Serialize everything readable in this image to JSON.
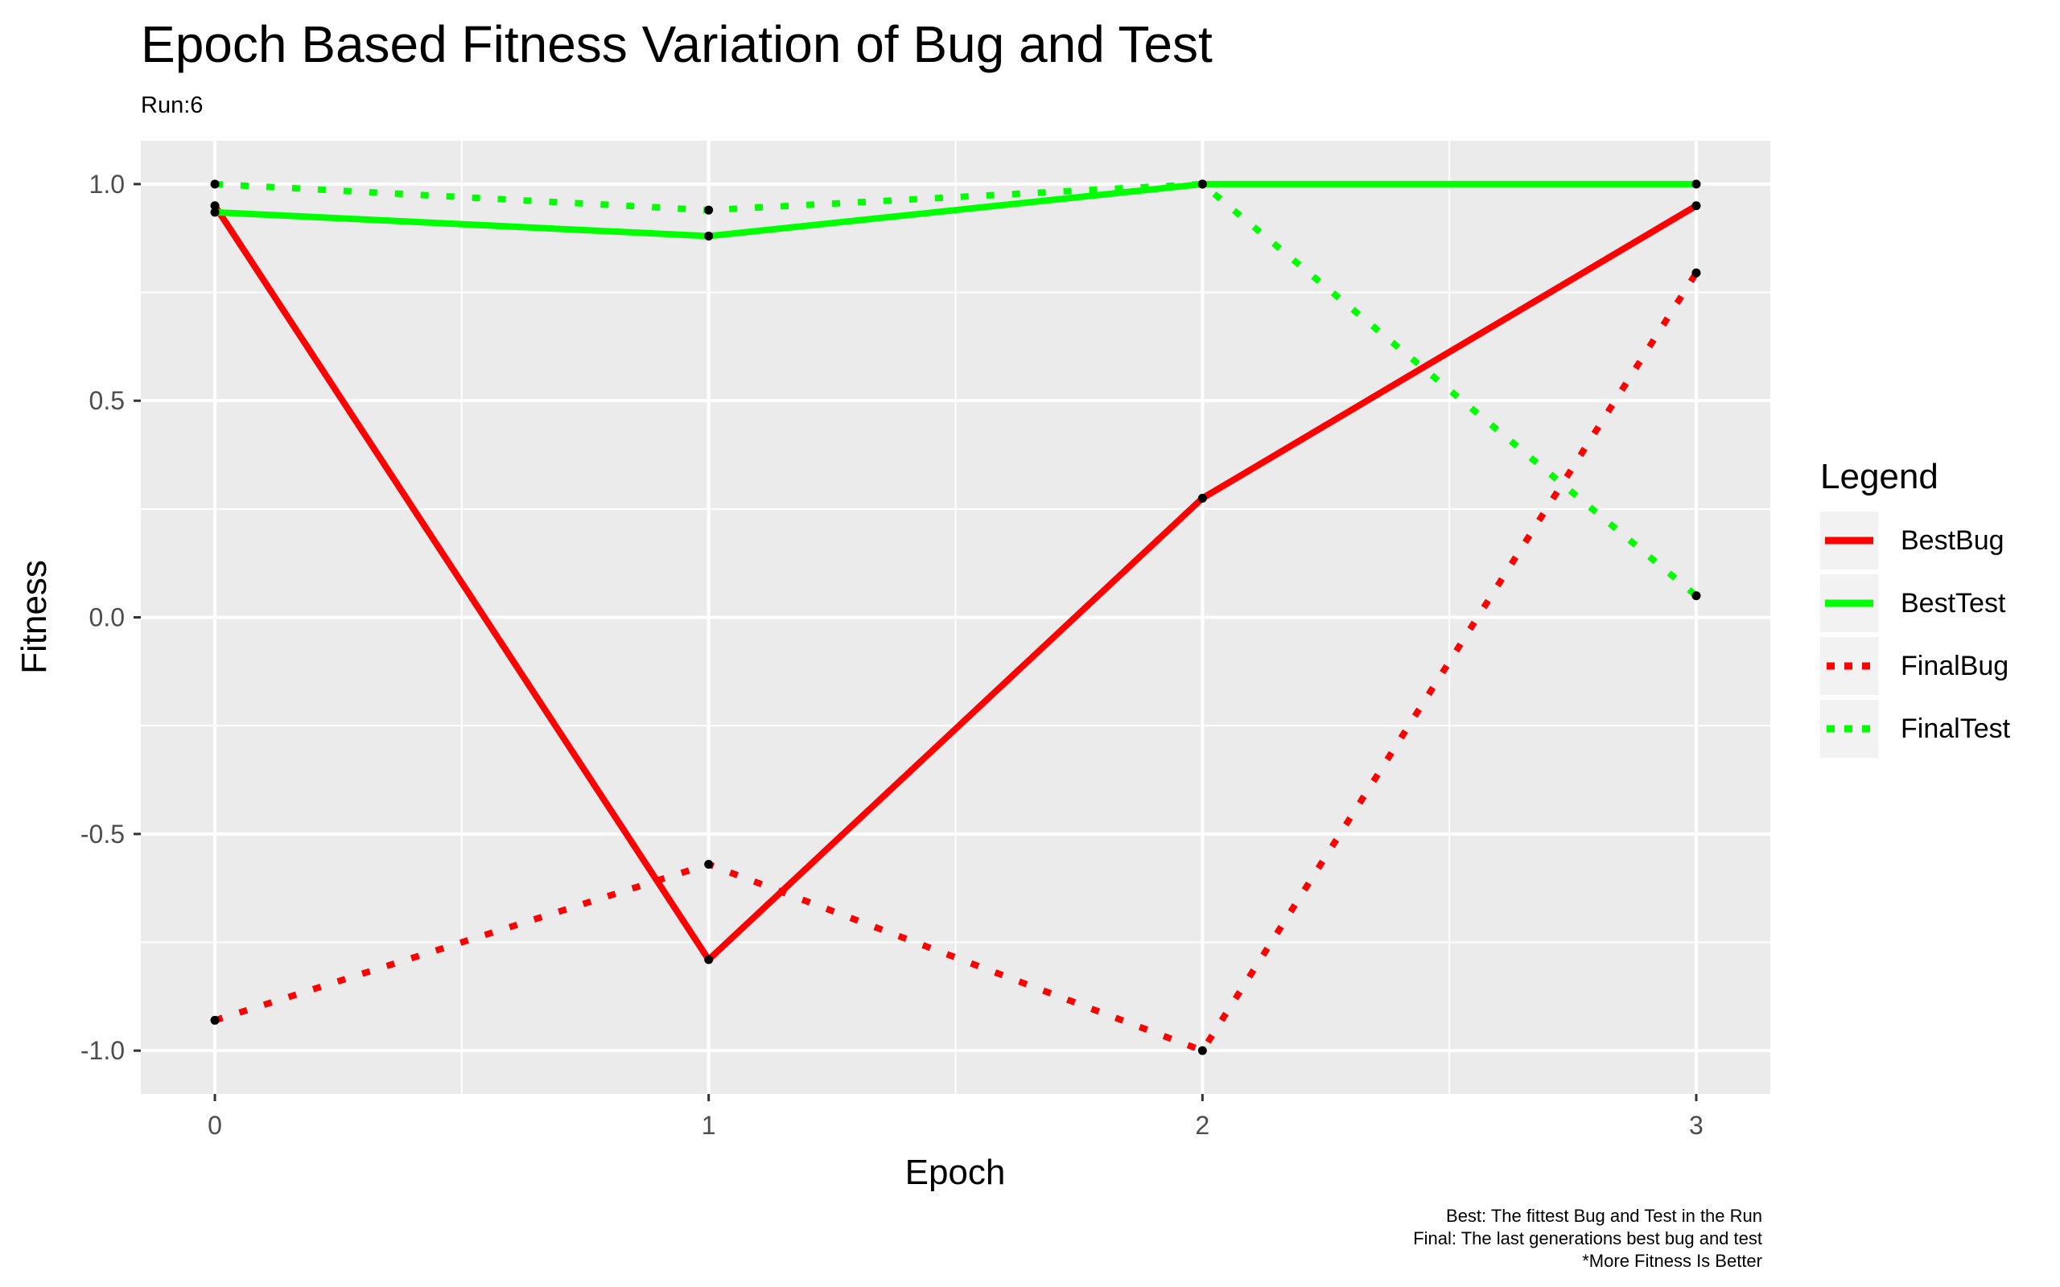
{
  "chart_data": {
    "type": "line",
    "title": "Epoch Based Fitness Variation of Bug and Test",
    "subtitle": "Run:6",
    "xlabel": "Epoch",
    "ylabel": "Fitness",
    "x": [
      0,
      1,
      2,
      3
    ],
    "xticks": [
      0,
      1,
      2,
      3
    ],
    "xtick_labels": [
      "0",
      "1",
      "2",
      "3"
    ],
    "xlim": [
      -0.15,
      3.15
    ],
    "yticks": [
      -1.0,
      -0.5,
      0.0,
      0.5,
      1.0
    ],
    "ytick_labels": [
      "-1.0",
      "-0.5",
      "0.0",
      "0.5",
      "1.0"
    ],
    "ylim": [
      -1.1,
      1.1
    ],
    "grid": true,
    "legend_title": "Legend",
    "legend_position": "right",
    "series": [
      {
        "name": "BestBug",
        "values": [
          0.95,
          -0.79,
          0.275,
          0.95
        ],
        "color": "#ff0000",
        "linetype": "solid"
      },
      {
        "name": "BestTest",
        "values": [
          0.935,
          0.88,
          1.0,
          1.0
        ],
        "color": "#00ff00",
        "linetype": "solid"
      },
      {
        "name": "FinalBug",
        "values": [
          -0.93,
          -0.57,
          -1.0,
          0.795
        ],
        "color": "#ff0000",
        "linetype": "dotted"
      },
      {
        "name": "FinalTest",
        "values": [
          1.0,
          0.94,
          1.0,
          0.05
        ],
        "color": "#00ff00",
        "linetype": "dotted"
      }
    ],
    "caption": [
      "Best: The fittest Bug and Test in the Run",
      "Final: The last generations best bug and test",
      "*More Fitness Is Better"
    ]
  }
}
